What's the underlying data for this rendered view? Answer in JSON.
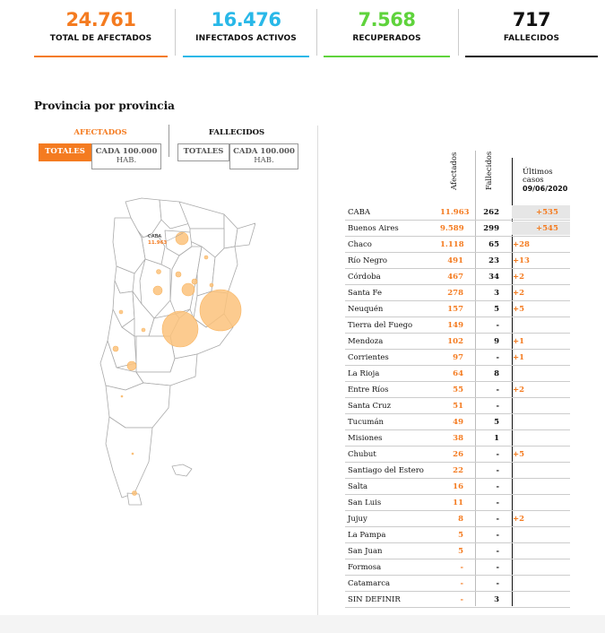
{
  "stats": [
    {
      "value": "24.761",
      "label": "TOTAL DE AFECTADOS",
      "color": "#f47b20"
    },
    {
      "value": "16.476",
      "label": "INFECTADOS ACTIVOS",
      "color": "#29b8e8"
    },
    {
      "value": "7.568",
      "label": "RECUPERADOS",
      "color": "#5fd33c"
    },
    {
      "value": "717",
      "label": "FALLECIDOS",
      "color": "#111111"
    }
  ],
  "section_title": "Provincia por provincia",
  "controls": {
    "afectados_label": "AFECTADOS",
    "fallecidos_label": "FALLECIDOS",
    "totales": "TOTALES",
    "cada_line1": "CADA 100.000",
    "cada_line2": "HAB."
  },
  "map": {
    "caba_label": "CABA",
    "caba_value": "11.963"
  },
  "table": {
    "col_afectados": "Afectados",
    "col_fallecidos": "Fallecidos",
    "col_ultimos_1": "Últimos",
    "col_ultimos_2": "casos",
    "col_ultimos_date": "09/06/2020",
    "rows": [
      {
        "prov": "CABA",
        "af": "11.963",
        "fa": "262",
        "ul": "+535",
        "shaded": true
      },
      {
        "prov": "Buenos Aires",
        "af": "9.589",
        "fa": "299",
        "ul": "+545",
        "shaded": true
      },
      {
        "prov": "Chaco",
        "af": "1.118",
        "fa": "65",
        "ul": "+28"
      },
      {
        "prov": "Río Negro",
        "af": "491",
        "fa": "23",
        "ul": "+13"
      },
      {
        "prov": "Córdoba",
        "af": "467",
        "fa": "34",
        "ul": "+2"
      },
      {
        "prov": "Santa Fe",
        "af": "278",
        "fa": "3",
        "ul": "+2"
      },
      {
        "prov": "Neuquén",
        "af": "157",
        "fa": "5",
        "ul": "+5"
      },
      {
        "prov": "Tierra del Fuego",
        "af": "149",
        "fa": "-",
        "ul": ""
      },
      {
        "prov": "Mendoza",
        "af": "102",
        "fa": "9",
        "ul": "+1"
      },
      {
        "prov": "Corrientes",
        "af": "97",
        "fa": "-",
        "ul": "+1"
      },
      {
        "prov": "La Rioja",
        "af": "64",
        "fa": "8",
        "ul": ""
      },
      {
        "prov": "Entre Ríos",
        "af": "55",
        "fa": "-",
        "ul": "+2"
      },
      {
        "prov": "Santa Cruz",
        "af": "51",
        "fa": "-",
        "ul": ""
      },
      {
        "prov": "Tucumán",
        "af": "49",
        "fa": "5",
        "ul": ""
      },
      {
        "prov": "Misiones",
        "af": "38",
        "fa": "1",
        "ul": ""
      },
      {
        "prov": "Chubut",
        "af": "26",
        "fa": "-",
        "ul": "+5"
      },
      {
        "prov": "Santiago del Estero",
        "af": "22",
        "fa": "-",
        "ul": ""
      },
      {
        "prov": "Salta",
        "af": "16",
        "fa": "-",
        "ul": ""
      },
      {
        "prov": "San Luis",
        "af": "11",
        "fa": "-",
        "ul": ""
      },
      {
        "prov": "Jujuy",
        "af": "8",
        "fa": "-",
        "ul": "+2"
      },
      {
        "prov": "La Pampa",
        "af": "5",
        "fa": "-",
        "ul": ""
      },
      {
        "prov": "San Juan",
        "af": "5",
        "fa": "-",
        "ul": ""
      },
      {
        "prov": "Formosa",
        "af": "-",
        "fa": "-",
        "ul": ""
      },
      {
        "prov": "Catamarca",
        "af": "-",
        "fa": "-",
        "ul": ""
      },
      {
        "prov": "SIN DEFINIR",
        "af": "-",
        "fa": "3",
        "ul": ""
      }
    ]
  }
}
